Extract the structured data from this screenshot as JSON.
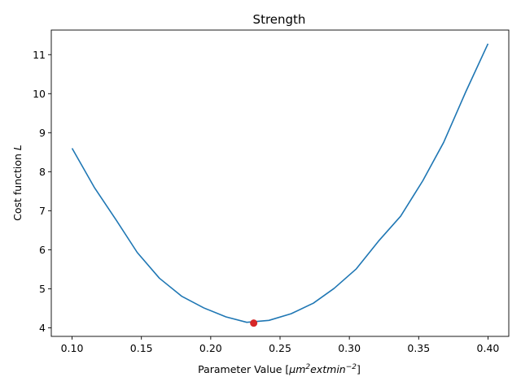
{
  "chart_data": {
    "type": "line",
    "title": "Strength",
    "xlabel_main": "Parameter Value [",
    "xlabel_unit_base": "μm",
    "xlabel_sup1": "2",
    "xlabel_unit_mid": "extmin",
    "xlabel_sup2": "−2",
    "xlabel_end": "]",
    "ylabel_main": "Cost function ",
    "ylabel_var": "L",
    "xlim": [
      0.085,
      0.415
    ],
    "ylim": [
      3.78,
      11.63
    ],
    "xticks": [
      0.1,
      0.15,
      0.2,
      0.25,
      0.3,
      0.35,
      0.4
    ],
    "xtick_labels": [
      "0.10",
      "0.15",
      "0.20",
      "0.25",
      "0.30",
      "0.35",
      "0.40"
    ],
    "yticks": [
      4,
      5,
      6,
      7,
      8,
      9,
      10,
      11
    ],
    "ytick_labels": [
      "4",
      "5",
      "6",
      "7",
      "8",
      "9",
      "10",
      "11"
    ],
    "grid": false,
    "series": [
      {
        "color": "#1f77b4",
        "x": [
          0.1,
          0.116,
          0.132,
          0.147,
          0.163,
          0.179,
          0.195,
          0.211,
          0.226,
          0.242,
          0.258,
          0.274,
          0.289,
          0.305,
          0.321,
          0.337,
          0.353,
          0.368,
          0.384,
          0.4
        ],
        "y": [
          8.6,
          7.6,
          6.75,
          5.93,
          5.27,
          4.81,
          4.51,
          4.28,
          4.14,
          4.19,
          4.36,
          4.63,
          5.01,
          5.51,
          6.22,
          6.86,
          7.77,
          8.75,
          10.05,
          11.28
        ]
      }
    ],
    "highlight_point": {
      "x": 0.231,
      "y": 4.12,
      "color": "#d62728"
    }
  }
}
